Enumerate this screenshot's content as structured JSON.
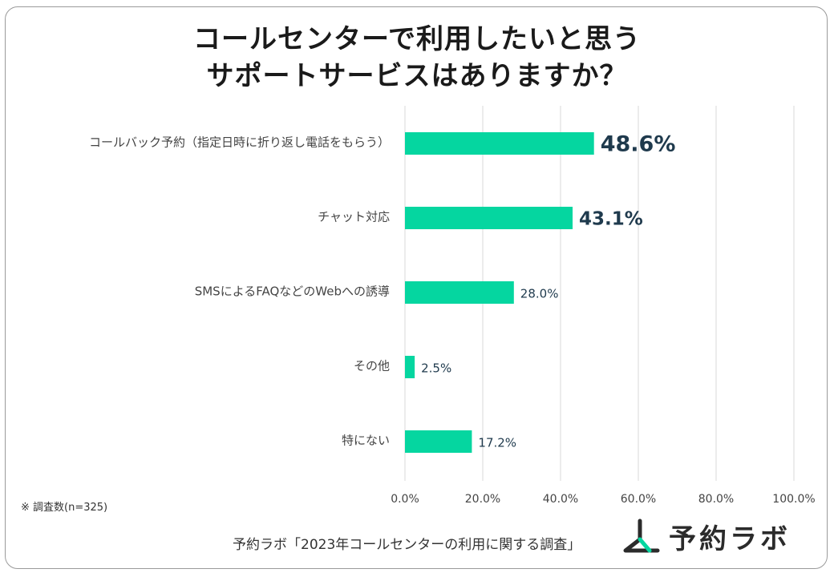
{
  "title": {
    "line1": "コールセンターで利用したいと思う",
    "line2": "サポートサービスはありますか？"
  },
  "chart_data": {
    "type": "bar",
    "orientation": "horizontal",
    "categories": [
      "コールバック予約（指定日時に折り返し電話をもらう）",
      "チャット対応",
      "SMSによるFAQなどのWebへの誘導",
      "その他",
      "特にない"
    ],
    "values": [
      48.6,
      43.1,
      28.0,
      2.5,
      17.2
    ],
    "value_labels": [
      "48.6%",
      "43.1%",
      "28.0%",
      "2.5%",
      "17.2%"
    ],
    "x_ticks": [
      "0.0%",
      "20.0%",
      "40.0%",
      "60.0%",
      "80.0%",
      "100.0%"
    ],
    "xlim": [
      0,
      100
    ],
    "bar_color": "#05d6a0",
    "label_color": "#1f3a4d",
    "grid": true,
    "highlight_top": 2
  },
  "note": "※ 調査数(n=325)",
  "source": "予約ラボ「2023年コールセンターの利用に関する調査」",
  "logo": {
    "text": "予約ラボ",
    "icon": "yoyaku-lab-logo-icon"
  }
}
